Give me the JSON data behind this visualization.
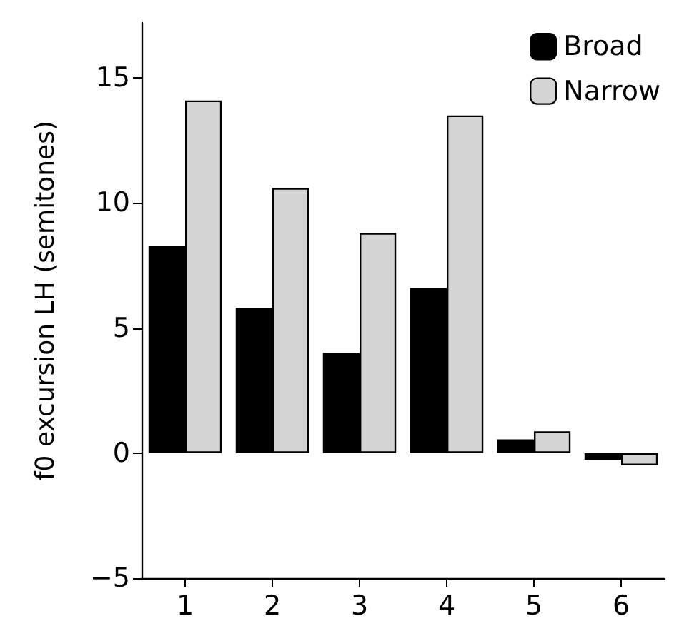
{
  "chart_data": {
    "type": "bar",
    "ylabel": "f0 excursion LH (semitones)",
    "categories": [
      "1",
      "2",
      "3",
      "4",
      "5",
      "6"
    ],
    "series": [
      {
        "name": "Broad",
        "color": "#000000",
        "values": [
          8.3,
          5.8,
          4.0,
          6.6,
          0.55,
          -0.27
        ]
      },
      {
        "name": "Narrow",
        "color": "#d4d4d4",
        "values": [
          14.1,
          10.6,
          8.8,
          13.5,
          0.87,
          -0.49
        ]
      }
    ],
    "ylim": [
      -5,
      17.2
    ],
    "yticks": [
      -5,
      0,
      5,
      10,
      15
    ],
    "grid": false,
    "legend": "top right"
  }
}
